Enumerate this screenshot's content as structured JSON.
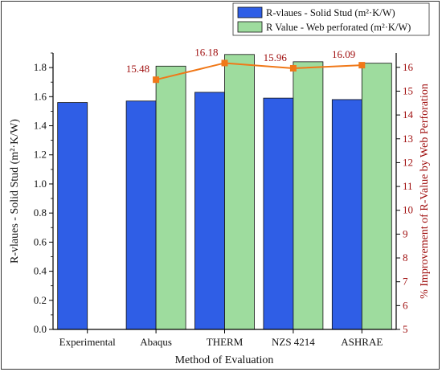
{
  "chart_data": {
    "type": "bar",
    "categories": [
      "Experimental",
      "Abaqus",
      "THERM",
      "NZS 4214",
      "ASHRAE"
    ],
    "series": [
      {
        "name": "R-vlaues - Solid Stud (m²·K/W)",
        "values": [
          1.56,
          1.57,
          1.63,
          1.59,
          1.58
        ],
        "color": "#2f5ee6",
        "axis": "left"
      },
      {
        "name": "R Value - Web perforated (m²·K/W)",
        "values": [
          null,
          1.81,
          1.89,
          1.84,
          1.83
        ],
        "color": "#9edc9e",
        "axis": "left"
      },
      {
        "name": "% Improvement of R-Value by Web Perforation",
        "type": "line",
        "values": [
          null,
          15.48,
          16.18,
          15.96,
          16.09
        ],
        "color": "#f07818",
        "axis": "right"
      }
    ],
    "data_labels": [
      "15.48",
      "16.18",
      "15.96",
      "16.09"
    ],
    "xlabel": "Method of Evaluation",
    "ylabel": "R-vlaues - Solid Stud (m²·K/W)",
    "y2label": "% Improvement of R-Value by Web Perforation",
    "ylim": [
      0,
      1.9
    ],
    "y2lim": [
      5,
      16.6
    ],
    "yticks": [
      "0.0",
      "0.2",
      "0.4",
      "0.6",
      "0.8",
      "1.0",
      "1.2",
      "1.4",
      "1.6",
      "1.8"
    ],
    "y2ticks": [
      "5",
      "6",
      "7",
      "8",
      "9",
      "10",
      "11",
      "12",
      "13",
      "14",
      "15",
      "16"
    ],
    "legend": "top",
    "grid": false,
    "colors": {
      "right_axis": "#a01010",
      "line": "#f07818"
    }
  }
}
